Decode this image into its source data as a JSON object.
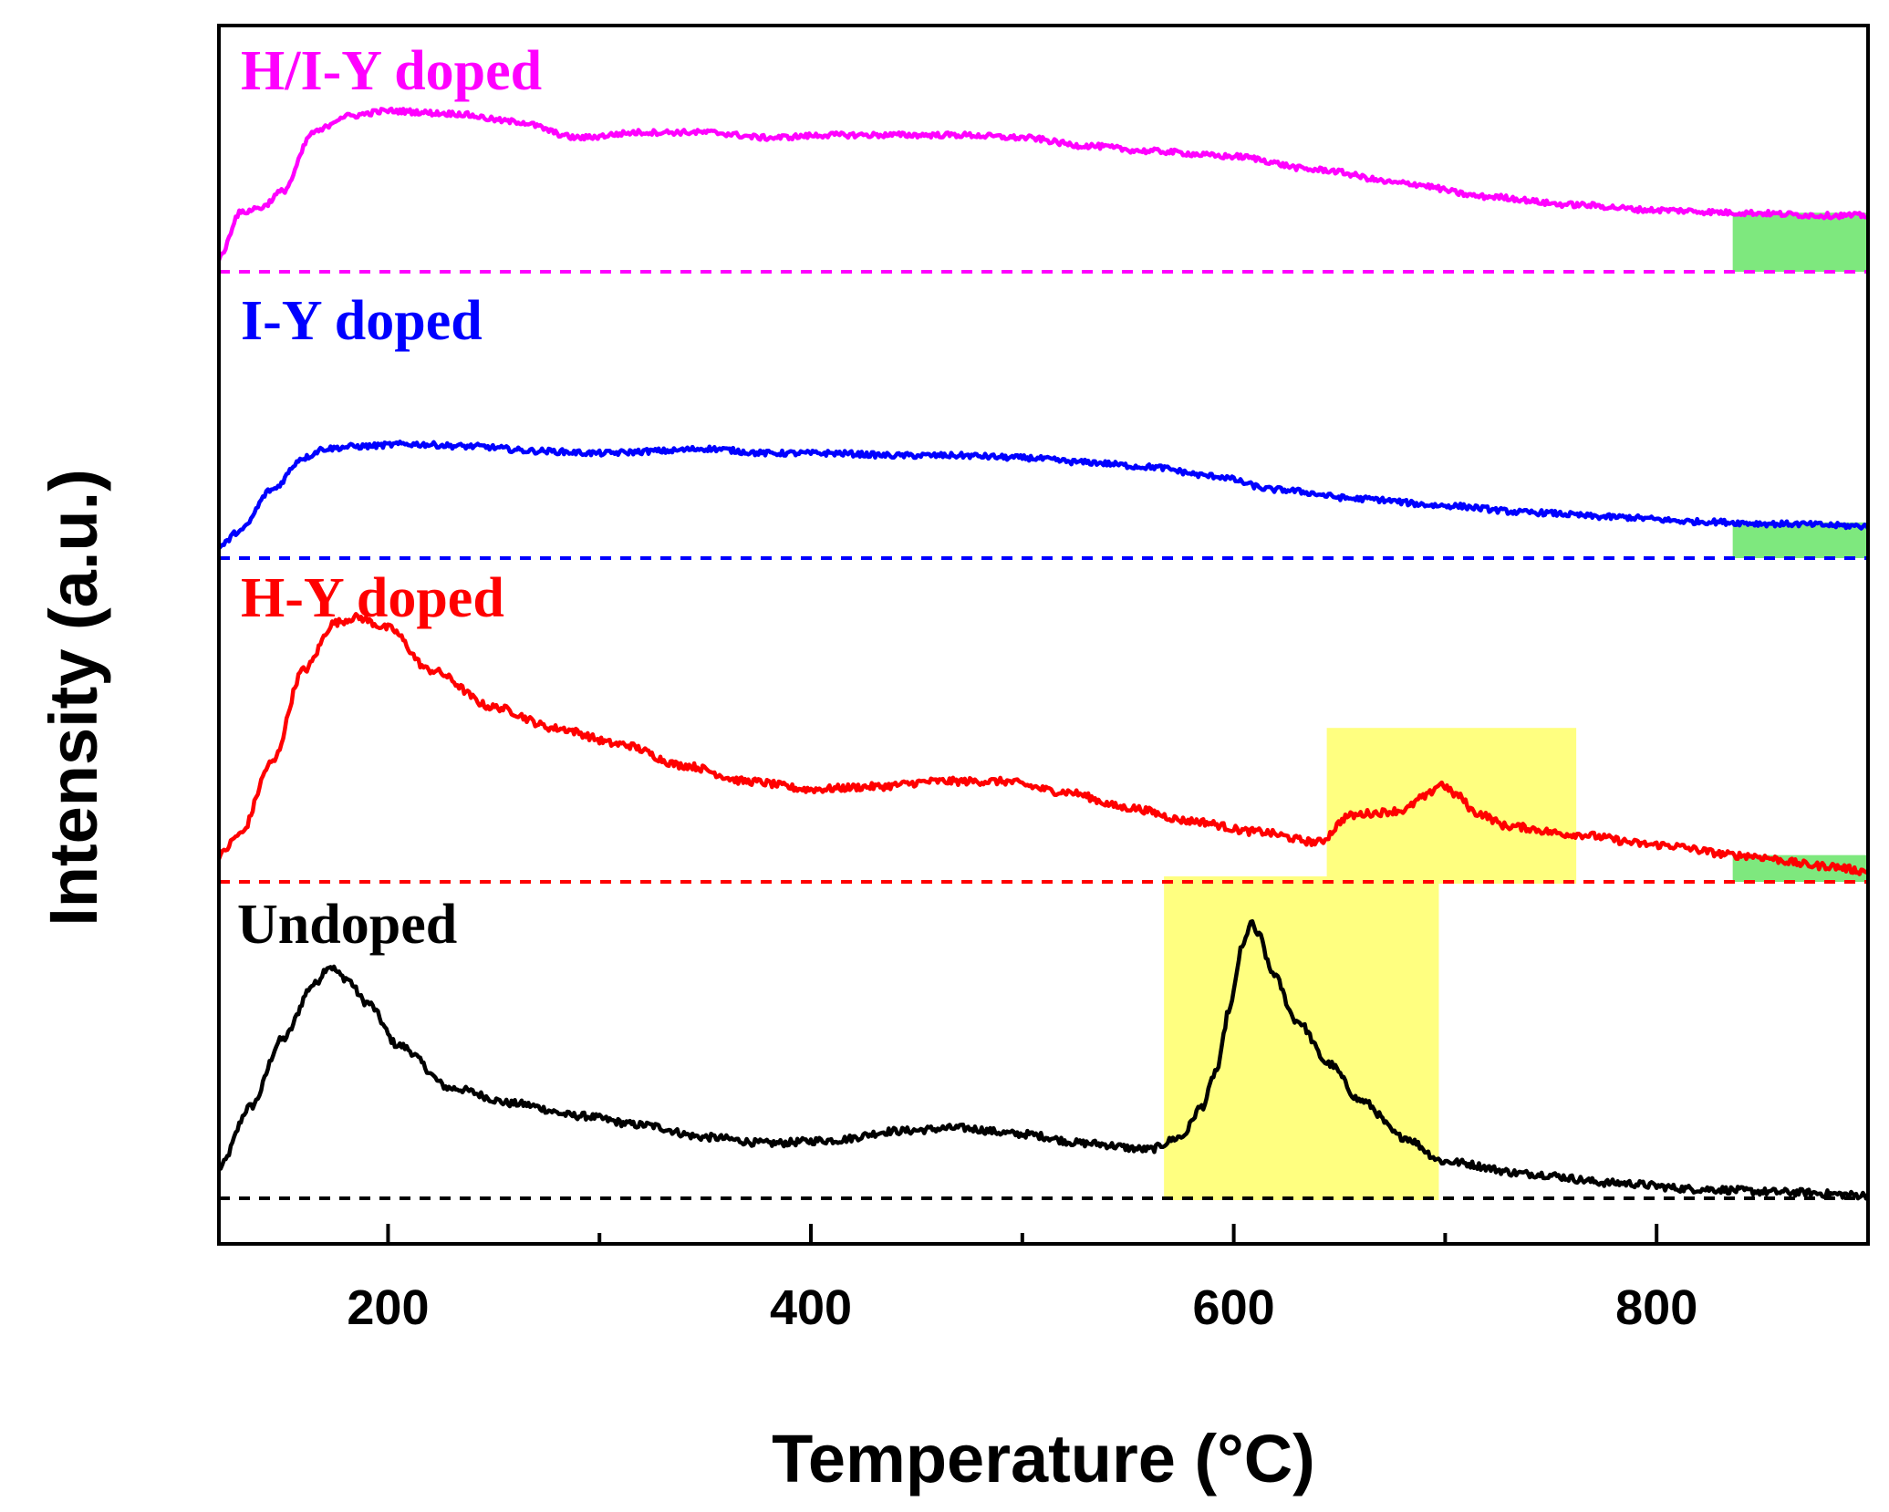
{
  "chart_data": {
    "type": "line",
    "title": "",
    "xlabel": "Temperature (°C)",
    "ylabel": "Intensity (a.u.)",
    "xlim": [
      120,
      900
    ],
    "x_ticks": [
      200,
      400,
      600,
      800
    ],
    "x_minor_ticks": [
      300,
      500,
      700,
      900
    ],
    "y_scale": "arbitrary units, vertically offset stack",
    "colors": {
      "undoped": "#000000",
      "hy": "#ff0000",
      "iy": "#0000ff",
      "hiy": "#ff00ff",
      "highlight_yellow": "#ffff80",
      "highlight_green": "#7ee87e"
    },
    "series": [
      {
        "key": "undoped",
        "name": "Undoped",
        "color": "#000000",
        "x": [
          120,
          135,
          150,
          165,
          172,
          180,
          190,
          205,
          230,
          260,
          290,
          320,
          350,
          380,
          410,
          440,
          470,
          500,
          530,
          560,
          575,
          585,
          592,
          598,
          604,
          608,
          612,
          618,
          630,
          645,
          660,
          680,
          700,
          740,
          780,
          820,
          860,
          900
        ],
        "values": [
          0.1,
          0.3,
          0.52,
          0.7,
          0.76,
          0.72,
          0.64,
          0.5,
          0.36,
          0.31,
          0.27,
          0.24,
          0.2,
          0.18,
          0.19,
          0.22,
          0.23,
          0.21,
          0.18,
          0.16,
          0.2,
          0.3,
          0.42,
          0.62,
          0.82,
          0.9,
          0.86,
          0.74,
          0.58,
          0.44,
          0.32,
          0.2,
          0.12,
          0.08,
          0.05,
          0.03,
          0.02,
          0.01
        ],
        "noise": 0.012
      },
      {
        "key": "hy",
        "name": "H-Y doped",
        "color": "#ff0000",
        "x": [
          120,
          130,
          145,
          160,
          175,
          185,
          200,
          220,
          250,
          280,
          310,
          340,
          370,
          400,
          430,
          460,
          490,
          520,
          550,
          580,
          610,
          640,
          655,
          665,
          680,
          690,
          698,
          705,
          715,
          730,
          760,
          800,
          840,
          880,
          900
        ],
        "values": [
          0.1,
          0.18,
          0.45,
          0.8,
          0.98,
          1.0,
          0.96,
          0.8,
          0.66,
          0.58,
          0.52,
          0.44,
          0.38,
          0.35,
          0.36,
          0.38,
          0.38,
          0.34,
          0.28,
          0.23,
          0.19,
          0.15,
          0.25,
          0.26,
          0.27,
          0.32,
          0.37,
          0.33,
          0.26,
          0.21,
          0.18,
          0.14,
          0.1,
          0.06,
          0.04
        ],
        "noise": 0.014
      },
      {
        "key": "iy",
        "name": "I-Y doped",
        "color": "#0000ff",
        "x": [
          120,
          130,
          145,
          160,
          170,
          185,
          210,
          240,
          270,
          300,
          330,
          350,
          380,
          410,
          440,
          470,
          500,
          530,
          560,
          590,
          620,
          660,
          700,
          740,
          780,
          820,
          860,
          900
        ],
        "values": [
          0.05,
          0.12,
          0.3,
          0.44,
          0.48,
          0.49,
          0.5,
          0.49,
          0.47,
          0.46,
          0.47,
          0.48,
          0.46,
          0.46,
          0.45,
          0.45,
          0.44,
          0.42,
          0.4,
          0.36,
          0.3,
          0.26,
          0.23,
          0.2,
          0.18,
          0.16,
          0.15,
          0.14
        ],
        "noise": 0.012
      },
      {
        "key": "hiy",
        "name": "H/I-Y doped",
        "color": "#ff00ff",
        "x": [
          120,
          130,
          140,
          150,
          165,
          180,
          200,
          230,
          260,
          290,
          320,
          350,
          380,
          410,
          440,
          470,
          500,
          530,
          560,
          600,
          640,
          680,
          720,
          760,
          800,
          840,
          880,
          900
        ],
        "values": [
          0.05,
          0.22,
          0.24,
          0.3,
          0.52,
          0.58,
          0.6,
          0.59,
          0.56,
          0.5,
          0.52,
          0.52,
          0.5,
          0.51,
          0.51,
          0.51,
          0.5,
          0.47,
          0.45,
          0.43,
          0.38,
          0.33,
          0.28,
          0.25,
          0.23,
          0.22,
          0.21,
          0.21
        ],
        "noise": 0.01
      }
    ],
    "highlights": [
      {
        "series": "undoped",
        "x_start": 567,
        "x_end": 697,
        "color": "yellow"
      },
      {
        "series": "hy",
        "x_start": 644,
        "x_end": 762,
        "color": "yellow"
      },
      {
        "series": "hy",
        "x_start": 836,
        "x_end": 900,
        "color": "green"
      },
      {
        "series": "iy",
        "x_start": 836,
        "x_end": 900,
        "color": "green"
      },
      {
        "series": "hiy",
        "x_start": 836,
        "x_end": 900,
        "color": "green"
      }
    ]
  }
}
